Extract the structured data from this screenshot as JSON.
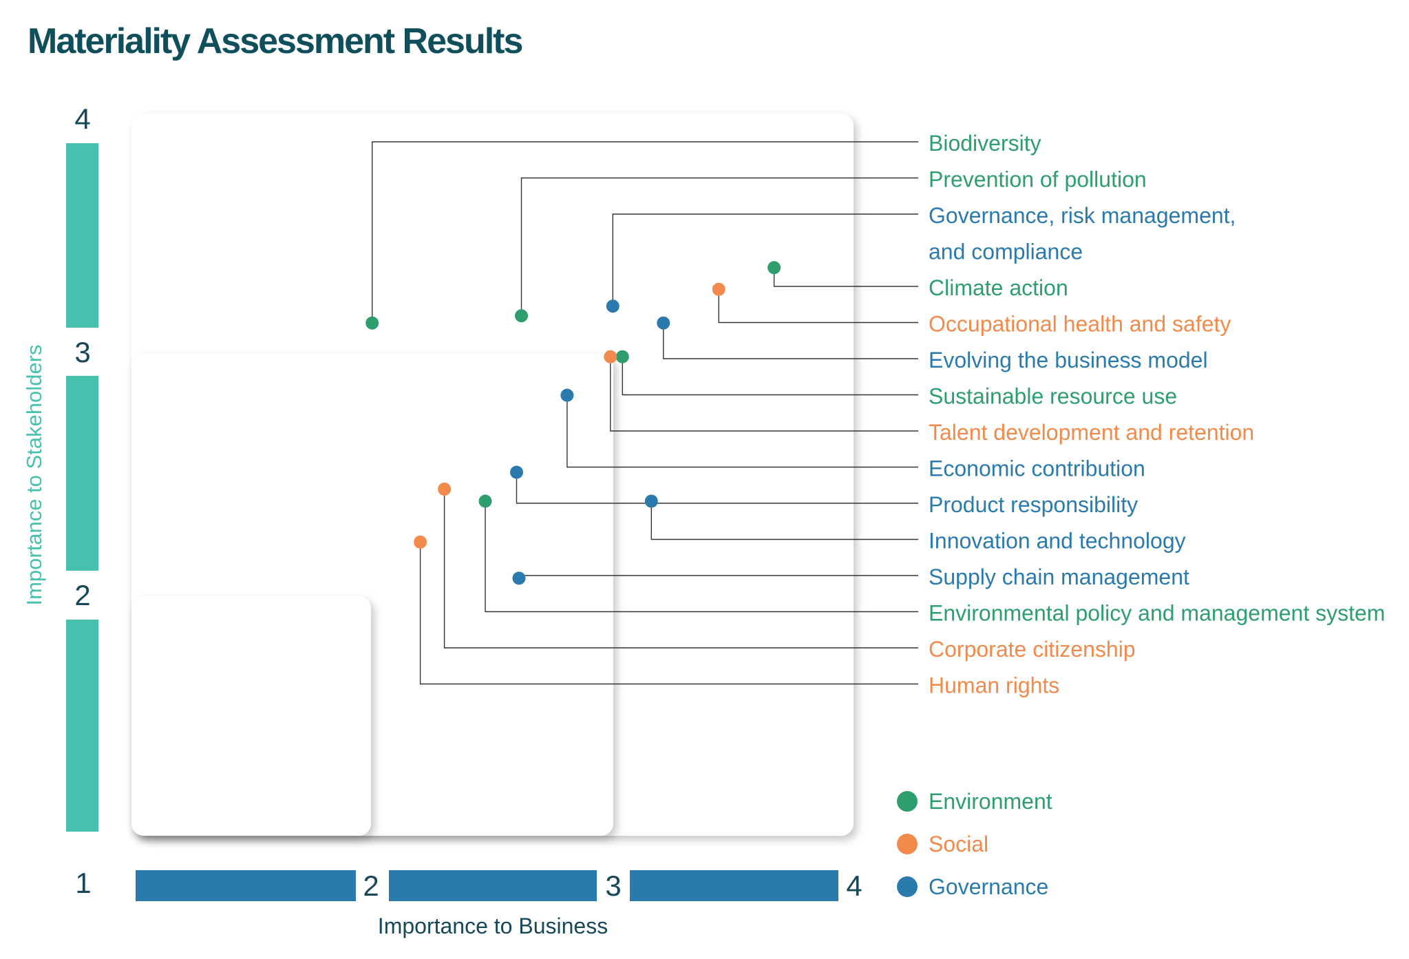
{
  "title": "Materiality Assessment Results",
  "colors": {
    "title": "#0f4f5c",
    "environment": "#2e9e6f",
    "social": "#f28a4b",
    "governance": "#2a7aad",
    "y_axis_bar": "#47c1ae",
    "x_axis_bar": "#2a7aad",
    "axis_number": "#17485a",
    "leader_line": "#333333"
  },
  "chart_data": {
    "type": "scatter",
    "xlabel": "Importance to Business",
    "ylabel": "Importance to Stakeholders",
    "xlim": [
      1,
      4
    ],
    "ylim": [
      1,
      4
    ],
    "x_ticks": [
      "1",
      "2",
      "3",
      "4"
    ],
    "y_ticks": [
      "2",
      "3",
      "4"
    ],
    "grid": false,
    "legend_position": "bottom-right",
    "legend": [
      {
        "category": "environment",
        "label": "Environment"
      },
      {
        "category": "social",
        "label": "Social"
      },
      {
        "category": "governance",
        "label": "Governance"
      }
    ],
    "points": [
      {
        "label": "Biodiversity",
        "category": "environment",
        "x": 2.0,
        "y": 3.13
      },
      {
        "label": "Prevention of pollution",
        "category": "environment",
        "x": 2.62,
        "y": 3.16
      },
      {
        "label": "Governance, risk management,",
        "label2": "and compliance",
        "category": "governance",
        "x": 3.0,
        "y": 3.2
      },
      {
        "label": "Climate action",
        "category": "environment",
        "x": 3.67,
        "y": 3.36
      },
      {
        "label": "Occupational health and safety",
        "category": "social",
        "x": 3.44,
        "y": 3.27
      },
      {
        "label": "Evolving the business model",
        "category": "governance",
        "x": 3.21,
        "y": 3.13
      },
      {
        "label": "Sustainable resource use",
        "category": "environment",
        "x": 3.04,
        "y": 2.99
      },
      {
        "label": "Talent development and retention",
        "category": "social",
        "x": 2.99,
        "y": 2.99
      },
      {
        "label": "Economic contribution",
        "category": "governance",
        "x": 2.81,
        "y": 2.83
      },
      {
        "label": "Product responsibility",
        "category": "governance",
        "x": 2.6,
        "y": 2.51
      },
      {
        "label": "Innovation and technology",
        "category": "governance",
        "x": 3.16,
        "y": 2.39
      },
      {
        "label": "Supply chain management",
        "category": "governance",
        "x": 2.61,
        "y": 2.07
      },
      {
        "label": "Environmental policy and management system",
        "category": "environment",
        "x": 2.47,
        "y": 2.39
      },
      {
        "label": "Corporate citizenship",
        "category": "social",
        "x": 2.3,
        "y": 2.44
      },
      {
        "label": "Human rights",
        "category": "social",
        "x": 2.2,
        "y": 2.22
      }
    ]
  }
}
